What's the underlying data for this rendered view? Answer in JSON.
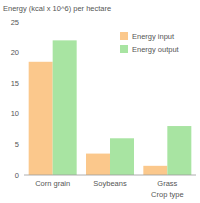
{
  "chart_data": {
    "type": "bar",
    "y_label": "Energy (kcal x 10^6) per hectare",
    "x_label": "Crop type",
    "categories": [
      "Corn grain",
      "Soybeans",
      "Grass"
    ],
    "series": [
      {
        "name": "Energy input",
        "color": "#fbc88c",
        "values": [
          18.5,
          3.5,
          1.5
        ]
      },
      {
        "name": "Energy output",
        "color": "#a8e4a2",
        "values": [
          22,
          6,
          8
        ]
      }
    ],
    "ylim": [
      0,
      25
    ],
    "yticks": [
      0,
      5,
      10,
      15,
      20,
      25
    ],
    "grid": false,
    "legend": "top-right"
  }
}
